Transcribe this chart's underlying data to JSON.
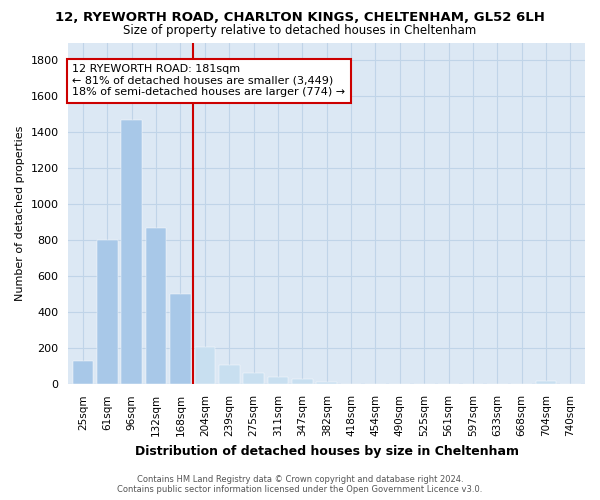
{
  "title": "12, RYEWORTH ROAD, CHARLTON KINGS, CHELTENHAM, GL52 6LH",
  "subtitle": "Size of property relative to detached houses in Cheltenham",
  "xlabel": "Distribution of detached houses by size in Cheltenham",
  "ylabel": "Number of detached properties",
  "categories": [
    "25sqm",
    "61sqm",
    "96sqm",
    "132sqm",
    "168sqm",
    "204sqm",
    "239sqm",
    "275sqm",
    "311sqm",
    "347sqm",
    "382sqm",
    "418sqm",
    "454sqm",
    "490sqm",
    "525sqm",
    "561sqm",
    "597sqm",
    "633sqm",
    "668sqm",
    "704sqm",
    "740sqm"
  ],
  "values": [
    130,
    800,
    1470,
    870,
    500,
    210,
    105,
    65,
    40,
    30,
    15,
    0,
    0,
    0,
    0,
    0,
    0,
    0,
    0,
    20,
    0
  ],
  "bar_color_left": "#a8c8e8",
  "bar_color_right": "#c8dff0",
  "line_color": "#cc0000",
  "annotation_line1": "12 RYEWORTH ROAD: 181sqm",
  "annotation_line2": "← 81% of detached houses are smaller (3,449)",
  "annotation_line3": "18% of semi-detached houses are larger (774) →",
  "annotation_box_color": "#cc0000",
  "footer_line1": "Contains HM Land Registry data © Crown copyright and database right 2024.",
  "footer_line2": "Contains public sector information licensed under the Open Government Licence v3.0.",
  "ylim": [
    0,
    1900
  ],
  "yticks": [
    0,
    200,
    400,
    600,
    800,
    1000,
    1200,
    1400,
    1600,
    1800
  ],
  "property_bar_index": 4,
  "bg_color": "#dce8f4",
  "grid_color": "#c0d4e8"
}
